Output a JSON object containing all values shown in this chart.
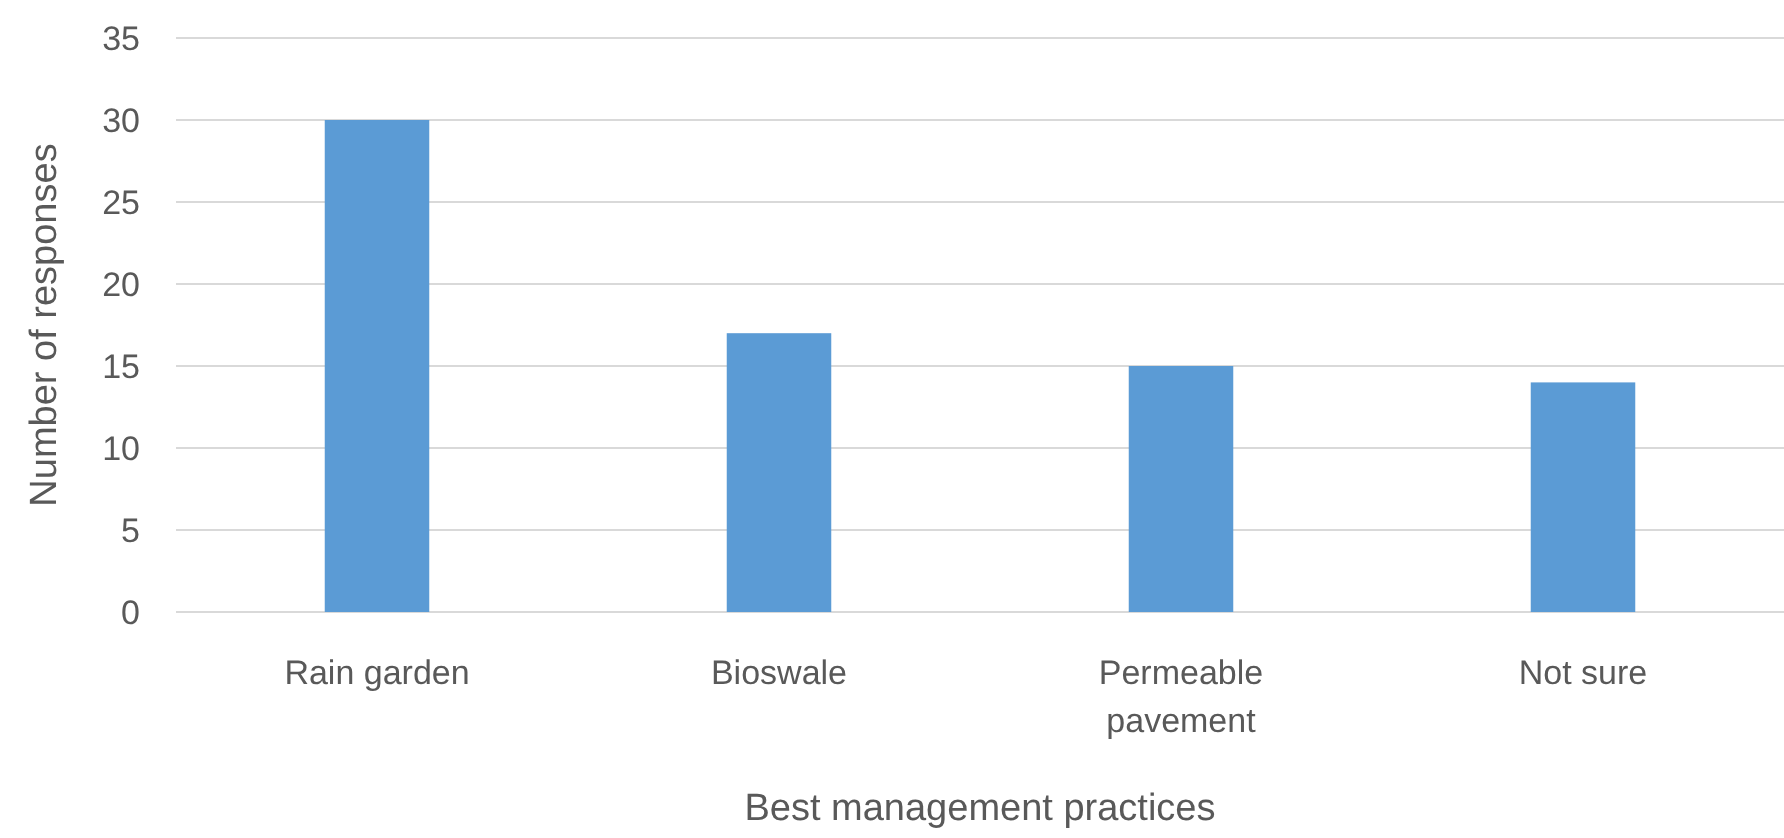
{
  "chart_data": {
    "type": "bar",
    "xlabel": "Best management practices",
    "ylabel": "Number of responses",
    "categories": [
      "Rain garden",
      "Bioswale",
      "Permeable pavement",
      "Not sure"
    ],
    "values": [
      30,
      17,
      15,
      14
    ],
    "color": "#5b9bd5",
    "ylim": [
      0,
      35
    ],
    "yticks": [
      0,
      5,
      10,
      15,
      20,
      25,
      30,
      35
    ],
    "grid": "y"
  }
}
